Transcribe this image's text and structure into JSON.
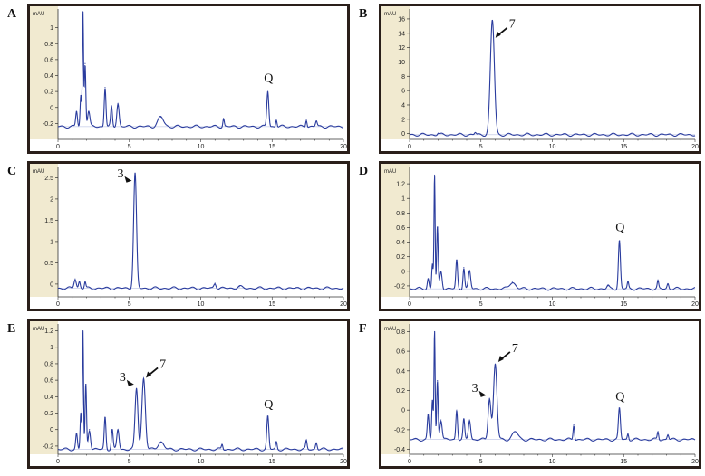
{
  "panels": [
    {
      "letter": "A",
      "type": "line",
      "ylabel": "mAU",
      "xlim": [
        0,
        20
      ],
      "ylim": [
        -0.4,
        1.2
      ],
      "xticks": [
        "0",
        "5",
        "10",
        "15",
        "20"
      ],
      "yticks": [
        [
          "1",
          1
        ],
        [
          "0.8",
          0.8
        ],
        [
          "0.6",
          0.6
        ],
        [
          "0.4",
          0.4
        ],
        [
          "0.2",
          0.2
        ],
        [
          "0",
          0
        ],
        [
          "-0.2",
          -0.2
        ]
      ],
      "baseline": -0.24,
      "peaks": [
        [
          1.3,
          -0.05,
          0.06
        ],
        [
          1.6,
          0.15,
          0.05
        ],
        [
          1.75,
          1.2,
          0.04
        ],
        [
          1.9,
          0.55,
          0.05
        ],
        [
          2.15,
          -0.05,
          0.08
        ],
        [
          3.3,
          0.25,
          0.06
        ],
        [
          3.75,
          0.0,
          0.06
        ],
        [
          4.2,
          0.05,
          0.08
        ],
        [
          7.2,
          -0.12,
          0.2
        ],
        [
          11.6,
          -0.14,
          0.05
        ],
        [
          14.7,
          0.2,
          0.07
        ],
        [
          15.3,
          -0.15,
          0.05
        ],
        [
          17.4,
          -0.15,
          0.05
        ],
        [
          18.1,
          -0.17,
          0.06
        ]
      ],
      "annotations": [
        {
          "text": "Q",
          "x": 14.75,
          "y": 0.32,
          "kind": "label"
        }
      ]
    },
    {
      "letter": "B",
      "type": "line",
      "ylabel": "mAU",
      "xlim": [
        0,
        20
      ],
      "ylim": [
        -0.8,
        17
      ],
      "xticks": [
        "0",
        "5",
        "10",
        "15",
        "20"
      ],
      "yticks": [
        [
          "16",
          16
        ],
        [
          "14",
          14
        ],
        [
          "12",
          12
        ],
        [
          "10",
          10
        ],
        [
          "8",
          8
        ],
        [
          "6",
          6
        ],
        [
          "4",
          4
        ],
        [
          "2",
          2
        ],
        [
          "0",
          0
        ]
      ],
      "baseline": -0.15,
      "peaks": [
        [
          2.0,
          0.05,
          0.06
        ],
        [
          4.6,
          0.15,
          0.06
        ],
        [
          5.8,
          15.8,
          0.14
        ]
      ],
      "annotations": [
        {
          "text": "7",
          "x": 5.95,
          "y": 13.5,
          "kind": "arrow"
        }
      ]
    },
    {
      "letter": "C",
      "type": "line",
      "ylabel": "mAU",
      "xlim": [
        0,
        20
      ],
      "ylim": [
        -0.3,
        2.7
      ],
      "xticks": [
        "0",
        "5",
        "10",
        "15",
        "20"
      ],
      "yticks": [
        [
          "2.5",
          2.5
        ],
        [
          "2",
          2
        ],
        [
          "1.5",
          1.5
        ],
        [
          "1",
          1
        ],
        [
          "0.5",
          0.5
        ],
        [
          "0",
          0
        ]
      ],
      "baseline": -0.1,
      "peaks": [
        [
          1.2,
          0.12,
          0.08
        ],
        [
          1.5,
          0.06,
          0.06
        ],
        [
          1.9,
          0.05,
          0.05
        ],
        [
          5.4,
          2.6,
          0.1
        ],
        [
          11.0,
          0.02,
          0.08
        ],
        [
          12.7,
          -0.06,
          0.15
        ]
      ],
      "annotations": [
        {
          "text": "3",
          "x": 5.3,
          "y": 2.45,
          "kind": "arrowhead"
        }
      ]
    },
    {
      "letter": "D",
      "type": "line",
      "ylabel": "mAU",
      "xlim": [
        0,
        20
      ],
      "ylim": [
        -0.35,
        1.4
      ],
      "xticks": [
        "0",
        "5",
        "10",
        "15",
        "20"
      ],
      "yticks": [
        [
          "1.2",
          1.2
        ],
        [
          "1",
          1
        ],
        [
          "0.8",
          0.8
        ],
        [
          "0.6",
          0.6
        ],
        [
          "0.4",
          0.4
        ],
        [
          "0.2",
          0.2
        ],
        [
          "0",
          0
        ],
        [
          "-0.2",
          -0.2
        ]
      ],
      "baseline": -0.24,
      "peaks": [
        [
          1.3,
          -0.1,
          0.06
        ],
        [
          1.6,
          0.1,
          0.05
        ],
        [
          1.75,
          1.32,
          0.04
        ],
        [
          1.95,
          0.6,
          0.05
        ],
        [
          2.2,
          0.0,
          0.08
        ],
        [
          3.3,
          0.15,
          0.06
        ],
        [
          3.8,
          0.05,
          0.06
        ],
        [
          4.2,
          0.0,
          0.08
        ],
        [
          7.2,
          -0.15,
          0.2
        ],
        [
          13.9,
          -0.2,
          0.08
        ],
        [
          14.7,
          0.42,
          0.07
        ],
        [
          15.3,
          -0.15,
          0.05
        ],
        [
          17.4,
          -0.14,
          0.05
        ],
        [
          18.1,
          -0.17,
          0.06
        ]
      ],
      "annotations": [
        {
          "text": "Q",
          "x": 14.75,
          "y": 0.55,
          "kind": "label"
        }
      ]
    },
    {
      "letter": "E",
      "type": "line",
      "ylabel": "mAU",
      "xlim": [
        0,
        20
      ],
      "ylim": [
        -0.3,
        1.25
      ],
      "xticks": [
        "0",
        "5",
        "10",
        "15",
        "20"
      ],
      "yticks": [
        [
          "1.2",
          1.2
        ],
        [
          "1",
          1
        ],
        [
          "0.8",
          0.8
        ],
        [
          "0.6",
          0.6
        ],
        [
          "0.4",
          0.4
        ],
        [
          "0.2",
          0.2
        ],
        [
          "0",
          0
        ],
        [
          "-0.2",
          -0.2
        ]
      ],
      "baseline": -0.24,
      "peaks": [
        [
          1.3,
          -0.05,
          0.06
        ],
        [
          1.6,
          0.2,
          0.05
        ],
        [
          1.75,
          1.2,
          0.04
        ],
        [
          1.95,
          0.55,
          0.05
        ],
        [
          2.2,
          0.0,
          0.08
        ],
        [
          3.3,
          0.15,
          0.06
        ],
        [
          3.8,
          0.0,
          0.06
        ],
        [
          4.2,
          0.0,
          0.08
        ],
        [
          5.5,
          0.5,
          0.1
        ],
        [
          6.0,
          0.62,
          0.12
        ],
        [
          7.2,
          -0.15,
          0.2
        ],
        [
          11.5,
          -0.18,
          0.05
        ],
        [
          14.7,
          0.16,
          0.07
        ],
        [
          15.3,
          -0.15,
          0.05
        ],
        [
          17.4,
          -0.14,
          0.05
        ],
        [
          18.1,
          -0.16,
          0.06
        ]
      ],
      "annotations": [
        {
          "text": "3",
          "x": 5.45,
          "y": 0.56,
          "kind": "arrowhead"
        },
        {
          "text": "7",
          "x": 6.1,
          "y": 0.64,
          "kind": "arrow"
        },
        {
          "text": "Q",
          "x": 14.75,
          "y": 0.26,
          "kind": "label"
        }
      ]
    },
    {
      "letter": "F",
      "type": "line",
      "ylabel": "mAU",
      "xlim": [
        0,
        20
      ],
      "ylim": [
        -0.45,
        0.85
      ],
      "xticks": [
        "0",
        "5",
        "10",
        "15",
        "20"
      ],
      "yticks": [
        [
          "0.8",
          0.8
        ],
        [
          "0.6",
          0.6
        ],
        [
          "0.4",
          0.4
        ],
        [
          "0.2",
          0.2
        ],
        [
          "0",
          0
        ],
        [
          "-0.2",
          -0.2
        ],
        [
          "-0.4",
          -0.4
        ]
      ],
      "baseline": -0.3,
      "peaks": [
        [
          1.3,
          -0.05,
          0.06
        ],
        [
          1.6,
          0.1,
          0.05
        ],
        [
          1.75,
          0.8,
          0.04
        ],
        [
          1.95,
          0.3,
          0.05
        ],
        [
          2.2,
          -0.1,
          0.08
        ],
        [
          3.3,
          0.0,
          0.06
        ],
        [
          3.8,
          -0.1,
          0.06
        ],
        [
          4.2,
          -0.1,
          0.08
        ],
        [
          5.6,
          0.12,
          0.1
        ],
        [
          6.0,
          0.47,
          0.12
        ],
        [
          7.4,
          -0.22,
          0.2
        ],
        [
          11.5,
          -0.15,
          0.05
        ],
        [
          14.7,
          0.02,
          0.07
        ],
        [
          15.3,
          -0.24,
          0.05
        ],
        [
          17.4,
          -0.22,
          0.05
        ],
        [
          18.1,
          -0.25,
          0.06
        ]
      ],
      "annotations": [
        {
          "text": "3",
          "x": 5.5,
          "y": 0.16,
          "kind": "arrowhead"
        },
        {
          "text": "7",
          "x": 6.15,
          "y": 0.5,
          "kind": "arrow"
        },
        {
          "text": "Q",
          "x": 14.75,
          "y": 0.1,
          "kind": "label"
        }
      ]
    }
  ],
  "colors": {
    "trace": "#2a3c9e",
    "frame": "#2a1f1a",
    "axis_band": "#f1ead0",
    "baseline": "#7080c8"
  }
}
